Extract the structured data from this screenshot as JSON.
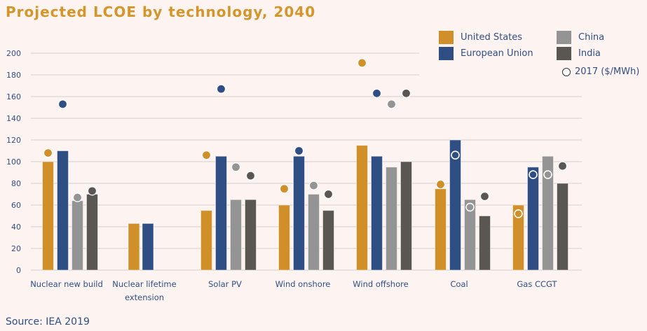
{
  "colors": {
    "title": "#d4962a",
    "text": "#2f4f84",
    "grid": "#dcd6d4",
    "background": "#fdf3f1",
    "United States": "#d08f28",
    "European Union": "#2f4f84",
    "China": "#949494",
    "India": "#5a5651"
  },
  "source": "Source: IEA 2019",
  "legend": {
    "series": [
      "United States",
      "European Union",
      "China",
      "India"
    ],
    "marker_label": "2017 ($/MWh)"
  },
  "chart_data": {
    "type": "bar",
    "title": "Projected LCOE by technology, 2040",
    "xlabel": "",
    "ylabel": "",
    "ylim": [
      0,
      200
    ],
    "yticks": [
      0,
      20,
      40,
      60,
      80,
      100,
      120,
      140,
      160,
      180,
      200
    ],
    "grid": true,
    "legend_position": "top-right",
    "categories": [
      [
        "Nuclear new build"
      ],
      [
        "Nuclear lifetime",
        "extension"
      ],
      [
        "Solar PV"
      ],
      [
        "Wind onshore"
      ],
      [
        "Wind offshore"
      ],
      [
        "Coal"
      ],
      [
        "Gas CCGT"
      ]
    ],
    "series": [
      {
        "name": "United States",
        "values": [
          100,
          43,
          55,
          60,
          115,
          75,
          60
        ]
      },
      {
        "name": "European Union",
        "values": [
          110,
          43,
          105,
          105,
          105,
          120,
          95
        ]
      },
      {
        "name": "China",
        "values": [
          64,
          null,
          65,
          70,
          95,
          65,
          105
        ]
      },
      {
        "name": "India",
        "values": [
          70,
          null,
          65,
          55,
          100,
          50,
          80
        ]
      }
    ],
    "markers_2017": {
      "label": "2017 ($/MWh)",
      "series": [
        {
          "name": "United States",
          "values": [
            108,
            null,
            106,
            75,
            191,
            79,
            52
          ]
        },
        {
          "name": "European Union",
          "values": [
            153,
            null,
            167,
            110,
            163,
            106,
            88
          ]
        },
        {
          "name": "China",
          "values": [
            67,
            null,
            95,
            78,
            153,
            58,
            88
          ]
        },
        {
          "name": "India",
          "values": [
            73,
            null,
            87,
            70,
            163,
            68,
            96
          ]
        }
      ]
    }
  }
}
